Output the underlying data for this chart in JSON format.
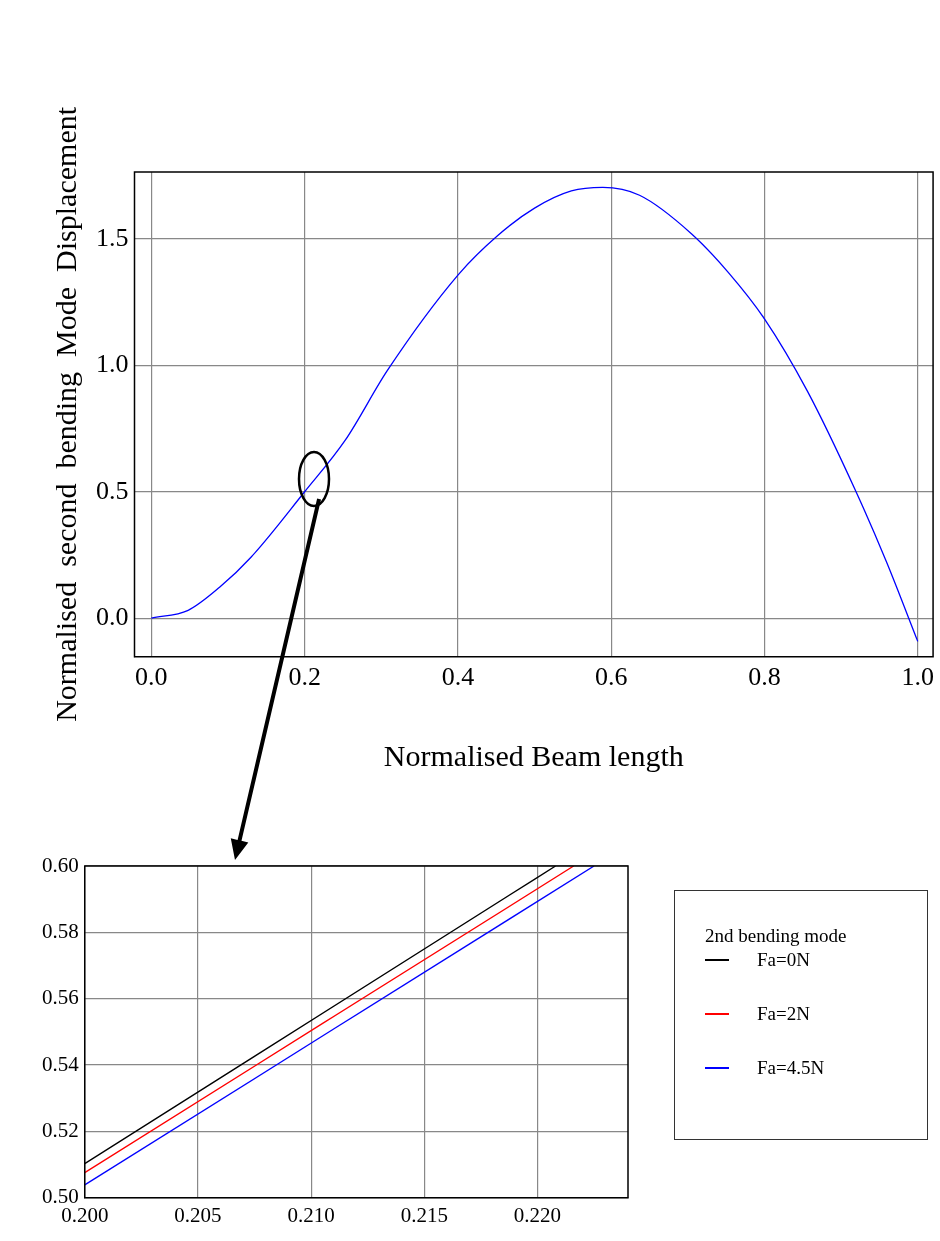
{
  "chart_data": [
    {
      "type": "line",
      "xlabel": "Normalised Beam length",
      "ylabel": "Normalised  second  bending  Mode  Displacement",
      "x": [
        0,
        0.048,
        0.089,
        0.13,
        0.2,
        0.253,
        0.308,
        0.4,
        0.452,
        0.5,
        0.548,
        0.589,
        0.637,
        0.705,
        0.753,
        0.8,
        0.856,
        0.918,
        0.959,
        1.0
      ],
      "series": [
        {
          "color": "#0000ff",
          "values": [
            0,
            0.031,
            0.122,
            0.241,
            0.5,
            0.704,
            0.98,
            1.357,
            1.514,
            1.622,
            1.69,
            1.704,
            1.673,
            1.52,
            1.367,
            1.184,
            0.898,
            0.51,
            0.224,
            -0.092
          ]
        }
      ],
      "xlim": [
        -0.022,
        1.02
      ],
      "ylim": [
        -0.153,
        1.765
      ],
      "xticks": [
        {
          "value": 0,
          "label": "0.0"
        },
        0.2,
        0.4,
        0.6,
        0.8,
        {
          "value": 1,
          "label": "1.0"
        }
      ],
      "yticks": [
        {
          "value": 0,
          "label": "0.0"
        },
        0.5,
        {
          "value": 1,
          "label": "1.0"
        },
        1.5
      ],
      "grid": true,
      "legend": false,
      "marker": "none",
      "line_style": "solid"
    },
    {
      "type": "line",
      "legend_title": "2nd bending mode",
      "series": [
        {
          "name": "Fa=0N",
          "color": "#000000",
          "x": [
            0.2,
            0.2208
          ],
          "values": [
            0.5103,
            0.6
          ]
        },
        {
          "name": "Fa=2N",
          "color": "#ff0000",
          "x": [
            0.2,
            0.2216
          ],
          "values": [
            0.5076,
            0.6
          ]
        },
        {
          "name": "Fa=4.5N",
          "color": "#0000ff",
          "x": [
            0.2,
            0.2225
          ],
          "values": [
            0.5039,
            0.6
          ]
        }
      ],
      "xlim": [
        0.2,
        0.224
      ],
      "ylim": [
        0.5,
        0.6
      ],
      "xticks": [
        {
          "value": 0.2,
          "label": "0.200"
        },
        0.205,
        {
          "value": 0.21,
          "label": "0.210"
        },
        0.215,
        {
          "value": 0.22,
          "label": "0.220"
        }
      ],
      "yticks": [
        {
          "value": 0.5,
          "label": "0.50"
        },
        0.52,
        0.54,
        0.56,
        0.58,
        {
          "value": 0.6,
          "label": "0.60"
        }
      ],
      "grid": true,
      "legend": "right",
      "marker": "none",
      "line_style": "solid"
    }
  ]
}
